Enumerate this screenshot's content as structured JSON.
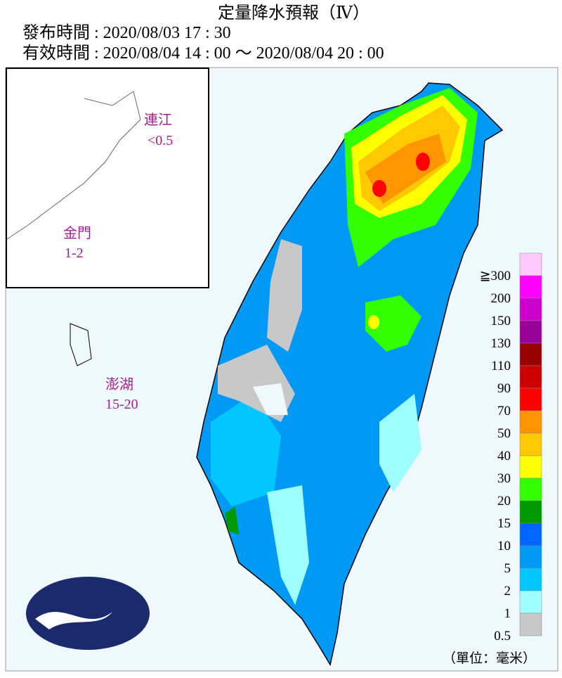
{
  "header": {
    "title": "定量降水預報（Ⅳ）",
    "issued": "發布時間 : 2020/08/03 17 : 30",
    "valid": "有效時間 : 2020/08/04 14 : 00 ～ 2020/08/04 20 : 00"
  },
  "islands": [
    {
      "name": "連江",
      "amount": "<0.5"
    },
    {
      "name": "金門",
      "amount": "1-2"
    },
    {
      "name": "澎湖",
      "amount": "15-20"
    }
  ],
  "legend": {
    "items": [
      {
        "label": "≧300",
        "color": "#ffc8ff"
      },
      {
        "label": "200",
        "color": "#ff00ff"
      },
      {
        "label": "150",
        "color": "#cc00cc"
      },
      {
        "label": "130",
        "color": "#990099"
      },
      {
        "label": "110",
        "color": "#990000"
      },
      {
        "label": "90",
        "color": "#cc0000"
      },
      {
        "label": "70",
        "color": "#ff0000"
      },
      {
        "label": "50",
        "color": "#ff9500"
      },
      {
        "label": "40",
        "color": "#ffc800"
      },
      {
        "label": "30",
        "color": "#ffff00"
      },
      {
        "label": "20",
        "color": "#33ff00"
      },
      {
        "label": "15",
        "color": "#009900"
      },
      {
        "label": "10",
        "color": "#0066ff"
      },
      {
        "label": "5",
        "color": "#0099f5"
      },
      {
        "label": "2",
        "color": "#00c8ff"
      },
      {
        "label": "1",
        "color": "#9ffeff"
      },
      {
        "label": "0.5",
        "color": "#c8c8c8"
      }
    ],
    "unit": "（單位：毫米）"
  }
}
